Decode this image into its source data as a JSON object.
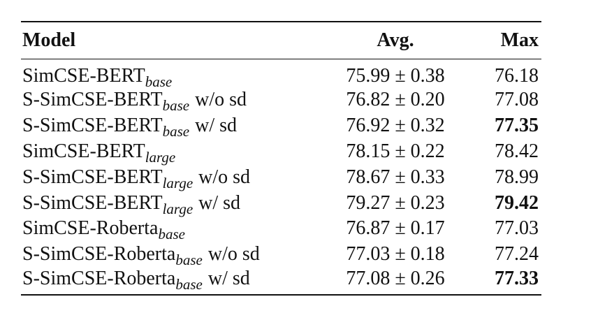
{
  "table": {
    "header": [
      "Model",
      "Avg.",
      "Max"
    ],
    "rows": [
      {
        "model": "SimCSE-BERT",
        "sub": "base",
        "avg": "75.99 ± 0.38",
        "max": "76.18"
      },
      {
        "model": "S-SimCSE-BERT",
        "sub": "base",
        "suffix": "w/o sd",
        "avg": "76.82 ± 0.20",
        "max": "77.08"
      },
      {
        "model": "S-SimCSE-BERT",
        "sub": "base",
        "suffix": "w/ sd",
        "avg": "76.92 ± 0.32",
        "max": "77.35",
        "bold": true
      },
      {
        "model": "SimCSE-BERT",
        "sub": "large",
        "avg": "78.15 ± 0.22",
        "max": "78.42"
      },
      {
        "model": "S-SimCSE-BERT",
        "sub": "large",
        "suffix": "w/o sd",
        "avg": "78.67 ± 0.33",
        "max": "78.99"
      },
      {
        "model": "S-SimCSE-BERT",
        "sub": "large",
        "suffix": "w/ sd",
        "avg": "79.27 ± 0.23",
        "max": "79.42",
        "bold": true
      },
      {
        "model": "SimCSE-Roberta",
        "sub": "base",
        "avg": "76.87 ± 0.17",
        "max": "77.03"
      },
      {
        "model": "S-SimCSE-Roberta",
        "sub": "base",
        "suffix": "w/o sd",
        "avg": "77.03 ± 0.18",
        "max": "77.24"
      },
      {
        "model": "S-SimCSE-Roberta",
        "sub": "base",
        "suffix": "w/ sd",
        "avg": "77.08 ± 0.26",
        "max": "77.33",
        "bold": true
      }
    ]
  }
}
